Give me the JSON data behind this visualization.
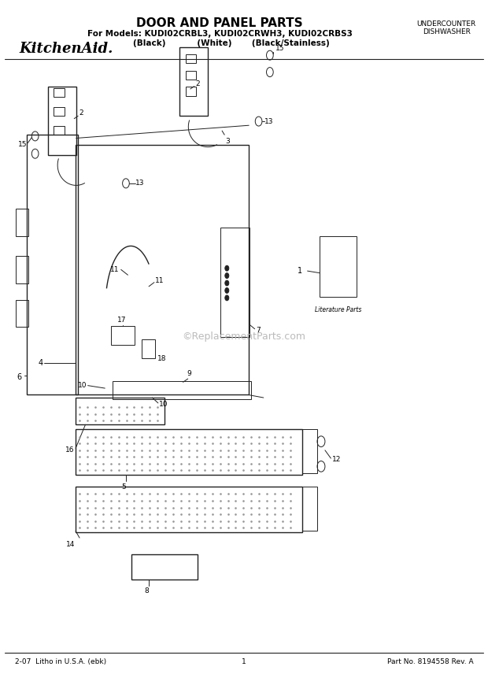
{
  "title": "DOOR AND PANEL PARTS",
  "subtitle1": "For Models: KUDI02CRBL3, KUDI02CRWH3, KUDI02CRBS3",
  "subtitle2": "        (Black)           (White)       (Black/Stainless)",
  "top_right1": "UNDERCOUNTER",
  "top_right2": "DISHWASHER",
  "brand": "KitchenAid.",
  "footer_left": "2-07  Litho in U.S.A. (ebk)",
  "footer_center": "1",
  "footer_right": "Part No. 8194558 Rev. A",
  "watermark": "©ReplacementParts.com",
  "bg_color": "#ffffff",
  "line_color": "#222222"
}
